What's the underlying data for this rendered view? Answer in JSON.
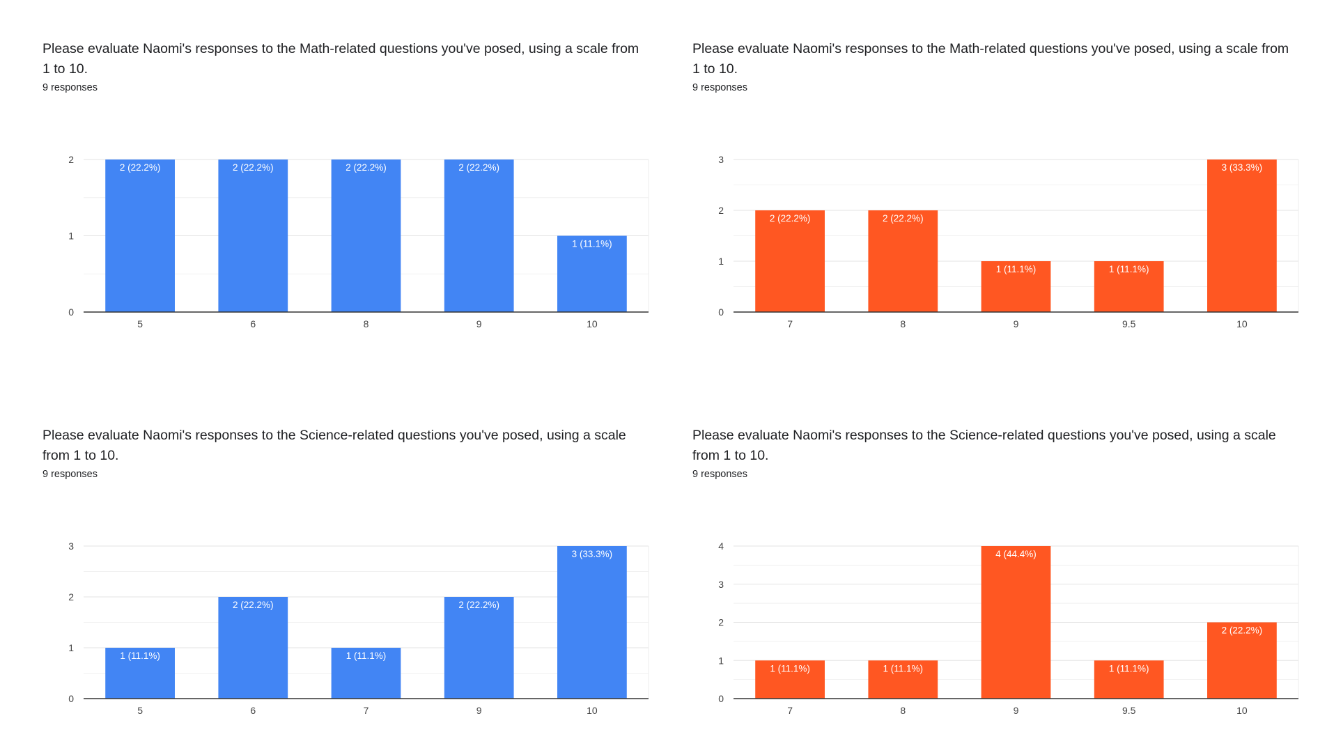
{
  "colors": {
    "blue": "#4285f4",
    "orange": "#ff5722",
    "grid": "#e6e6e6",
    "axis": "#333333",
    "tick": "#444444",
    "label": "#ffffff"
  },
  "panels": [
    {
      "title": "Please evaluate Naomi's responses to the Math-related questions you've posed, using a scale from 1 to 10.",
      "responses": "9 responses",
      "color": "#4285f4"
    },
    {
      "title": "Please evaluate Naomi's responses to the Math-related questions you've posed, using a scale from 1 to 10.",
      "responses": "9 responses",
      "color": "#ff5722"
    },
    {
      "title": "Please evaluate Naomi's responses to the Science-related questions you've posed, using a scale from 1 to 10.",
      "responses": "9 responses",
      "color": "#4285f4"
    },
    {
      "title": "Please evaluate Naomi's responses to the Science-related questions you've posed, using a scale from 1 to 10.",
      "responses": "9 responses",
      "color": "#ff5722"
    }
  ],
  "chart_data": [
    {
      "type": "bar",
      "title": "Please evaluate Naomi's responses to the Math-related questions you've posed, using a scale from 1 to 10.",
      "categories": [
        "5",
        "6",
        "8",
        "9",
        "10"
      ],
      "values": [
        2,
        2,
        2,
        2,
        1
      ],
      "labels": [
        "2 (22.2%)",
        "2 (22.2%)",
        "2 (22.2%)",
        "2 (22.2%)",
        "1 (11.1%)"
      ],
      "yticks": [
        "0",
        "1",
        "2"
      ],
      "ylim": [
        0,
        2
      ],
      "grid": true
    },
    {
      "type": "bar",
      "title": "Please evaluate Naomi's responses to the Math-related questions you've posed, using a scale from 1 to 10.",
      "categories": [
        "7",
        "8",
        "9",
        "9.5",
        "10"
      ],
      "values": [
        2,
        2,
        1,
        1,
        3
      ],
      "labels": [
        "2 (22.2%)",
        "2 (22.2%)",
        "1 (11.1%)",
        "1 (11.1%)",
        "3 (33.3%)"
      ],
      "yticks": [
        "0",
        "1",
        "2",
        "3"
      ],
      "ylim": [
        0,
        3
      ],
      "grid": true
    },
    {
      "type": "bar",
      "title": "Please evaluate Naomi's responses to the Science-related questions you've posed, using a scale from 1 to 10.",
      "categories": [
        "5",
        "6",
        "7",
        "9",
        "10"
      ],
      "values": [
        1,
        2,
        1,
        2,
        3
      ],
      "labels": [
        "1 (11.1%)",
        "2 (22.2%)",
        "1 (11.1%)",
        "2 (22.2%)",
        "3 (33.3%)"
      ],
      "yticks": [
        "0",
        "1",
        "2",
        "3"
      ],
      "ylim": [
        0,
        3
      ],
      "grid": true
    },
    {
      "type": "bar",
      "title": "Please evaluate Naomi's responses to the Science-related questions you've posed, using a scale from 1 to 10.",
      "categories": [
        "7",
        "8",
        "9",
        "9.5",
        "10"
      ],
      "values": [
        1,
        1,
        4,
        1,
        2
      ],
      "labels": [
        "1 (11.1%)",
        "1 (11.1%)",
        "4 (44.4%)",
        "1 (11.1%)",
        "2 (22.2%)"
      ],
      "yticks": [
        "0",
        "1",
        "2",
        "3",
        "4"
      ],
      "ylim": [
        0,
        4
      ],
      "grid": true
    }
  ]
}
